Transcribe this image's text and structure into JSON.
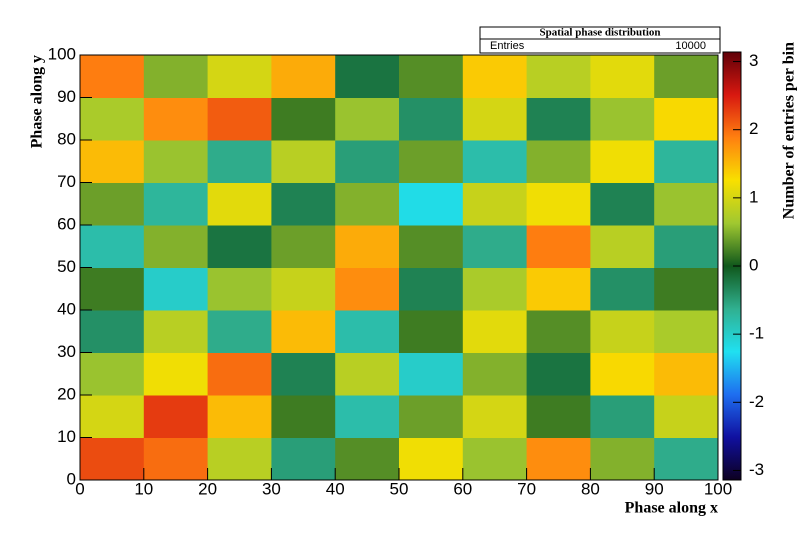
{
  "chart_data": {
    "type": "heatmap",
    "x_label": "Phase along x",
    "y_label": "Phase along y",
    "z_label": "Number of entries per bin",
    "stats": {
      "title": "Spatial phase distribution",
      "label": "Entries",
      "value": 10000
    },
    "xlim": [
      0,
      100
    ],
    "xticks": [
      0,
      10,
      20,
      30,
      40,
      50,
      60,
      70,
      80,
      90,
      100
    ],
    "ylim": [
      0,
      100
    ],
    "yticks": [
      0,
      10,
      20,
      30,
      40,
      50,
      60,
      70,
      80,
      90,
      100
    ],
    "zlim": [
      -3.14,
      3.14
    ],
    "zticks": [
      -3,
      -2,
      -1,
      0,
      1,
      2,
      3
    ],
    "palette": [
      "#0d0020",
      "#1010a0",
      "#1e6ef0",
      "#20e0f0",
      "#30b090",
      "#10581c",
      "#a0c830",
      "#f8e000",
      "#ff8010",
      "#d81810",
      "#600008"
    ],
    "x_edges": [
      0,
      10,
      20,
      30,
      40,
      50,
      60,
      70,
      80,
      90,
      100
    ],
    "y_edges": [
      0,
      10,
      20,
      30,
      40,
      50,
      60,
      70,
      80,
      90,
      100
    ],
    "z": [
      [
        2.2,
        2.0,
        0.8,
        -0.5,
        0.3,
        1.2,
        0.6,
        1.8,
        0.5,
        -0.6
      ],
      [
        1.0,
        2.3,
        1.5,
        0.2,
        -0.8,
        0.4,
        1.0,
        0.2,
        -0.5,
        0.9
      ],
      [
        0.6,
        1.2,
        2.0,
        -0.3,
        0.8,
        -1.0,
        0.5,
        -0.2,
        1.3,
        1.5
      ],
      [
        -0.4,
        0.8,
        -0.6,
        1.5,
        -0.8,
        0.2,
        1.1,
        0.3,
        0.9,
        0.7
      ],
      [
        0.2,
        -1.0,
        0.6,
        0.9,
        1.8,
        -0.3,
        0.7,
        1.4,
        -0.4,
        0.2
      ],
      [
        -0.8,
        0.5,
        -0.2,
        0.4,
        1.6,
        0.3,
        -0.6,
        1.9,
        0.8,
        -0.5
      ],
      [
        0.4,
        -0.7,
        1.1,
        -0.3,
        0.5,
        -1.2,
        0.9,
        1.2,
        -0.3,
        0.6
      ],
      [
        1.5,
        0.6,
        -0.6,
        0.8,
        -0.5,
        0.4,
        -0.8,
        0.5,
        1.2,
        -0.7
      ],
      [
        0.7,
        1.8,
        2.1,
        0.2,
        0.6,
        -0.4,
        1.0,
        -0.3,
        0.6,
        1.3
      ],
      [
        1.9,
        0.5,
        1.0,
        1.6,
        -0.2,
        0.3,
        1.4,
        0.8,
        1.1,
        0.4
      ]
    ]
  }
}
